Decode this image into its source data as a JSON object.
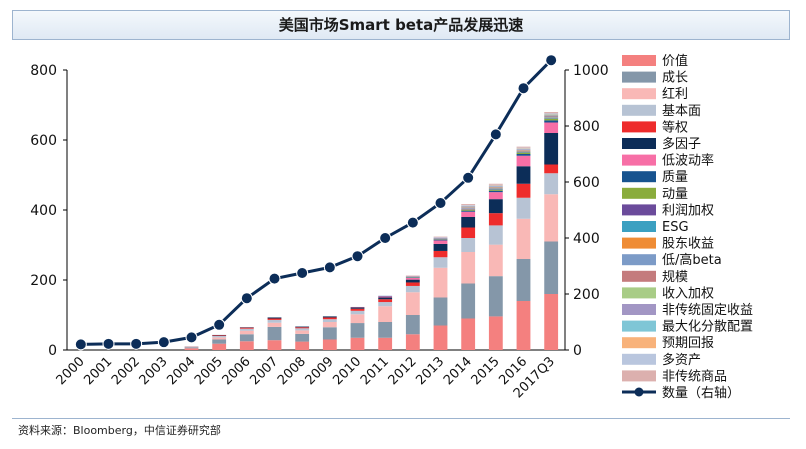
{
  "title": "美国市场Smart beta产品发展迅速",
  "source": "资料来源：Bloomberg，中信证券研究部",
  "chart_data": {
    "type": "bar",
    "stacked": true,
    "title": "美国市场Smart beta产品发展迅速",
    "categories": [
      "2000",
      "2001",
      "2002",
      "2003",
      "2004",
      "2005",
      "2006",
      "2007",
      "2008",
      "2009",
      "2010",
      "2011",
      "2012",
      "2013",
      "2014",
      "2015",
      "2016",
      "2017Q3"
    ],
    "ylim_left": [
      0,
      800
    ],
    "yticks_left": [
      0,
      200,
      400,
      600,
      800
    ],
    "ylim_right": [
      0,
      1000
    ],
    "yticks_right": [
      0,
      200,
      400,
      600,
      800,
      1000
    ],
    "legend_position": "right",
    "series": [
      {
        "name": "价值",
        "color": "#f4807f",
        "values": [
          0,
          0,
          0,
          0,
          5,
          18,
          25,
          28,
          24,
          30,
          35,
          35,
          45,
          70,
          90,
          96,
          140,
          160
        ]
      },
      {
        "name": "成长",
        "color": "#8497a9",
        "values": [
          0,
          0,
          0,
          0,
          3,
          12,
          20,
          38,
          22,
          35,
          42,
          45,
          55,
          80,
          100,
          115,
          120,
          150
        ]
      },
      {
        "name": "红利",
        "color": "#f9b8b6",
        "values": [
          0,
          0,
          0,
          0,
          2,
          6,
          10,
          12,
          10,
          15,
          25,
          45,
          65,
          85,
          90,
          90,
          115,
          135
        ]
      },
      {
        "name": "基本面",
        "color": "#b7c3d4",
        "values": [
          0,
          0,
          0,
          0,
          1,
          4,
          6,
          8,
          6,
          8,
          10,
          12,
          18,
          30,
          40,
          55,
          60,
          60
        ]
      },
      {
        "name": "等权",
        "color": "#ee2c2c",
        "values": [
          0,
          0,
          0,
          0,
          0,
          2,
          3,
          4,
          3,
          5,
          6,
          8,
          10,
          18,
          30,
          35,
          40,
          25
        ]
      },
      {
        "name": "多因子",
        "color": "#0c2d58",
        "values": [
          0,
          0,
          0,
          0,
          0,
          1,
          1,
          3,
          2,
          3,
          4,
          5,
          8,
          20,
          30,
          40,
          50,
          90
        ]
      },
      {
        "name": "低波动率",
        "color": "#f76fa6",
        "values": [
          0,
          0,
          0,
          0,
          0,
          0,
          0,
          0,
          0,
          0,
          1,
          3,
          5,
          10,
          15,
          20,
          30,
          30
        ]
      },
      {
        "name": "质量",
        "color": "#17538f",
        "values": [
          0,
          0,
          0,
          0,
          0,
          0,
          0,
          0,
          0,
          0,
          0,
          1,
          1,
          2,
          3,
          4,
          5,
          6
        ]
      },
      {
        "name": "动量",
        "color": "#8aac3c",
        "values": [
          0,
          0,
          0,
          0,
          0,
          0,
          0,
          0,
          0,
          0,
          0,
          0,
          1,
          1,
          2,
          3,
          4,
          5
        ]
      },
      {
        "name": "利润加权",
        "color": "#6b4b9b",
        "values": [
          0,
          0,
          0,
          0,
          0,
          0,
          0,
          0,
          0,
          0,
          0,
          0,
          0,
          1,
          1,
          1,
          1,
          1
        ]
      },
      {
        "name": "ESG",
        "color": "#3ba0c1",
        "values": [
          0,
          0,
          0,
          0,
          0,
          0,
          0,
          0,
          0,
          0,
          0,
          0,
          0,
          1,
          1,
          1,
          1,
          2
        ]
      },
      {
        "name": "股东收益",
        "color": "#ef8c35",
        "values": [
          0,
          0,
          0,
          0,
          0,
          0,
          0,
          0,
          0,
          0,
          0,
          0,
          0,
          0,
          1,
          1,
          1,
          1
        ]
      },
      {
        "name": "低/高beta",
        "color": "#7c9bc7",
        "values": [
          0,
          0,
          0,
          0,
          0,
          0,
          0,
          0,
          0,
          0,
          0,
          1,
          1,
          1,
          2,
          2,
          2,
          2
        ]
      },
      {
        "name": "规模",
        "color": "#c47b7d",
        "values": [
          0,
          0,
          0,
          0,
          0,
          0,
          0,
          0,
          0,
          0,
          0,
          0,
          1,
          1,
          2,
          2,
          2,
          2
        ]
      },
      {
        "name": "收入加权",
        "color": "#a8cc86",
        "values": [
          0,
          0,
          0,
          0,
          0,
          0,
          0,
          0,
          0,
          0,
          0,
          0,
          0,
          0,
          1,
          1,
          1,
          1
        ]
      },
      {
        "name": "非传统固定收益",
        "color": "#a296c4",
        "values": [
          0,
          0,
          0,
          0,
          0,
          0,
          0,
          0,
          0,
          0,
          0,
          0,
          1,
          1,
          2,
          2,
          2,
          2
        ]
      },
      {
        "name": "最大化分散配置",
        "color": "#7fc6d6",
        "values": [
          0,
          0,
          0,
          0,
          0,
          0,
          0,
          0,
          0,
          0,
          0,
          0,
          0,
          0,
          1,
          1,
          1,
          1
        ]
      },
      {
        "name": "预期回报",
        "color": "#f8b27a",
        "values": [
          0,
          0,
          0,
          0,
          0,
          0,
          0,
          0,
          0,
          0,
          0,
          0,
          0,
          0,
          1,
          1,
          1,
          1
        ]
      },
      {
        "name": "多资产",
        "color": "#b9c6de",
        "values": [
          0,
          0,
          0,
          0,
          0,
          0,
          0,
          0,
          0,
          0,
          0,
          0,
          1,
          1,
          2,
          2,
          2,
          2
        ]
      },
      {
        "name": "非传统商品",
        "color": "#dcb0ae",
        "values": [
          0,
          0,
          0,
          0,
          0,
          0,
          0,
          0,
          0,
          0,
          0,
          0,
          1,
          2,
          3,
          3,
          3,
          4
        ]
      }
    ],
    "line_series": {
      "name": "数量（右轴）",
      "color": "#0c2d58",
      "axis": "right",
      "values": [
        20,
        22,
        22,
        28,
        45,
        90,
        185,
        255,
        275,
        295,
        335,
        400,
        455,
        525,
        615,
        770,
        935,
        1035
      ]
    }
  }
}
